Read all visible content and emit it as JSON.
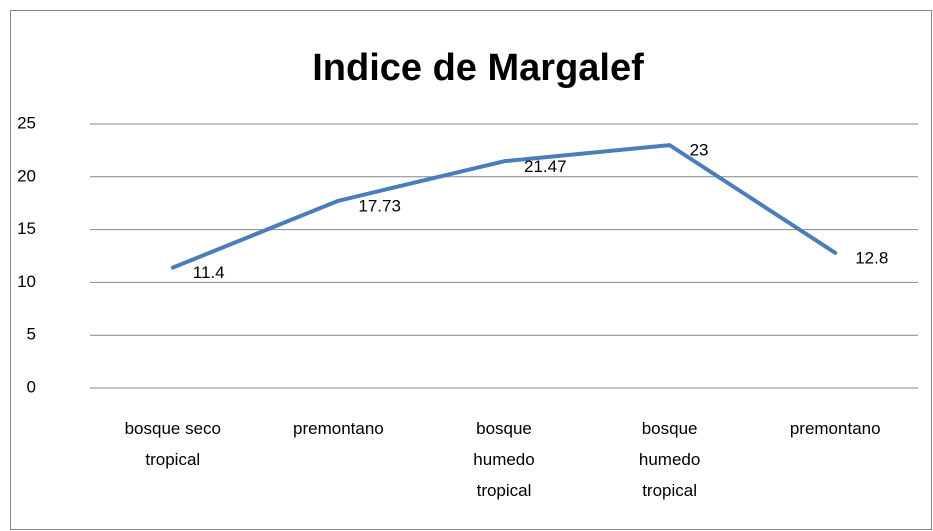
{
  "chart_data": {
    "type": "line",
    "title": "Indice de Margalef",
    "categories": [
      "bosque seco tropical",
      "premontano",
      "bosque humedo tropical",
      "bosque humedo tropical",
      "premontano"
    ],
    "values": [
      11.4,
      17.73,
      21.47,
      23,
      12.8
    ],
    "color": "#4a7ebb",
    "ylim": [
      0,
      25
    ],
    "yticks": [
      0,
      5,
      10,
      15,
      20,
      25
    ],
    "grid": true,
    "data_labels": true
  }
}
